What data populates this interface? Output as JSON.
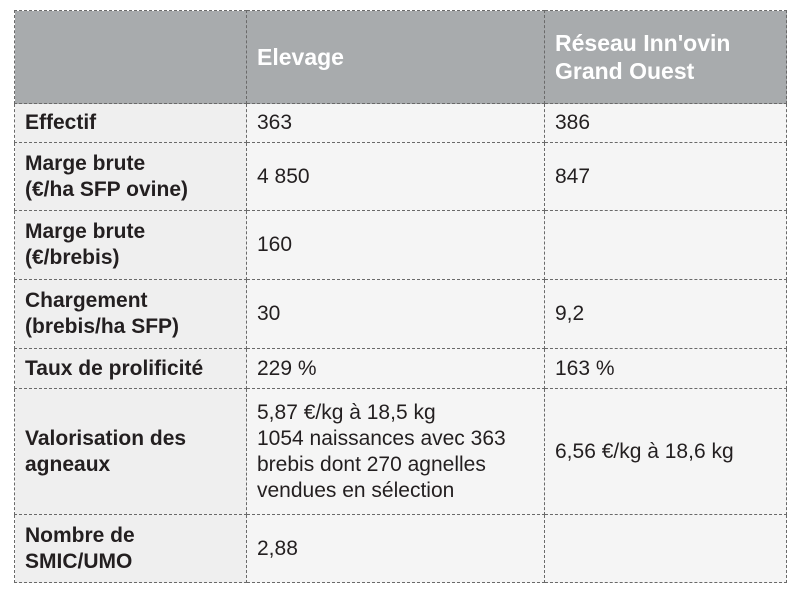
{
  "header": {
    "col1": "",
    "col2": "Elevage",
    "col3": "Réseau Inn'ovin\nGrand Ouest"
  },
  "rows": [
    {
      "label": "Effectif",
      "elevage": "363",
      "reseau": "386"
    },
    {
      "label": "Marge brute\n(€/ha SFP ovine)",
      "elevage": "4 850",
      "reseau": "847"
    },
    {
      "label": "Marge brute\n(€/brebis)",
      "elevage": "160",
      "reseau": ""
    },
    {
      "label": "Chargement\n(brebis/ha SFP)",
      "elevage": "30",
      "reseau": "9,2"
    },
    {
      "label": "Taux de prolificité",
      "elevage": "229 %",
      "reseau": "163 %"
    },
    {
      "label": "Valorisation des\nagneaux",
      "elevage": "5,87 €/kg  à 18,5 kg\n1054 naissances avec 363\nbrebis dont 270 agnelles\nvendues en sélection",
      "reseau": "6,56 €/kg  à 18,6 kg"
    },
    {
      "label": "Nombre de\nSMIC/UMO",
      "elevage": "2,88",
      "reseau": ""
    }
  ]
}
